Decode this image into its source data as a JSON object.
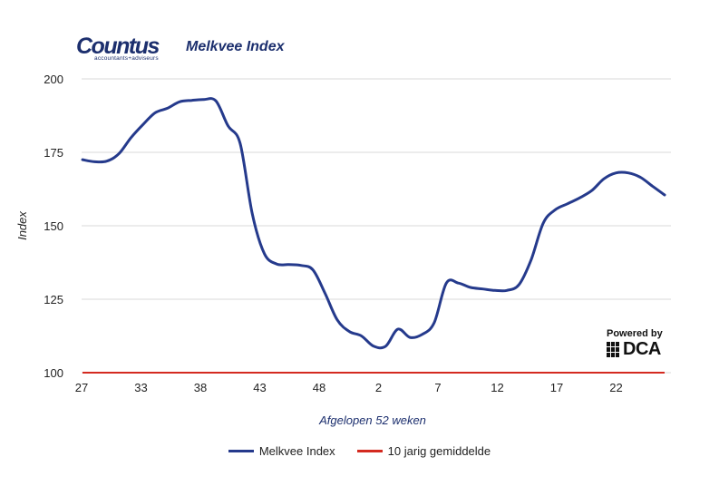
{
  "header": {
    "logo_word": "Countus",
    "logo_sub": "accountants+adviseurs",
    "title": "Melkvee Index"
  },
  "badge": {
    "powered": "Powered by",
    "brand": "DCA"
  },
  "colors": {
    "melkvee": "#253a8c",
    "avg": "#d42a20",
    "grid": "#d9d9d9",
    "text": "#222222",
    "title": "#1c2f6e"
  },
  "chart_data": {
    "type": "line",
    "title": "Melkvee Index",
    "xlabel": "Afgelopen 52 weken",
    "ylabel": "Index",
    "ylim": [
      100,
      200
    ],
    "yticks": [
      100,
      125,
      150,
      175,
      200
    ],
    "xticks": [
      "27",
      "33",
      "38",
      "43",
      "48",
      "2",
      "7",
      "12",
      "17",
      "22"
    ],
    "grid": true,
    "legend_position": "bottom",
    "series": [
      {
        "name": "Melkvee Index",
        "color": "#253a8c",
        "values": [
          172.5,
          171.8,
          172.0,
          174.5,
          180.0,
          184.5,
          188.5,
          190.0,
          192.2,
          192.7,
          193.0,
          192.5,
          184.0,
          178.0,
          154.0,
          140.5,
          137.0,
          136.8,
          136.5,
          135.0,
          127.0,
          118.0,
          114.0,
          112.5,
          109.0,
          109.0,
          114.8,
          112.0,
          113.0,
          117.0,
          130.5,
          130.5,
          129.0,
          128.5,
          128.0,
          128.0,
          130.0,
          138.5,
          151.0,
          155.5,
          157.5,
          159.5,
          162.0,
          166.0,
          168.0,
          168.0,
          166.5,
          163.5,
          160.5
        ]
      },
      {
        "name": "10 jarig gemiddelde",
        "color": "#d42a20",
        "values": [
          100,
          100
        ]
      }
    ]
  }
}
